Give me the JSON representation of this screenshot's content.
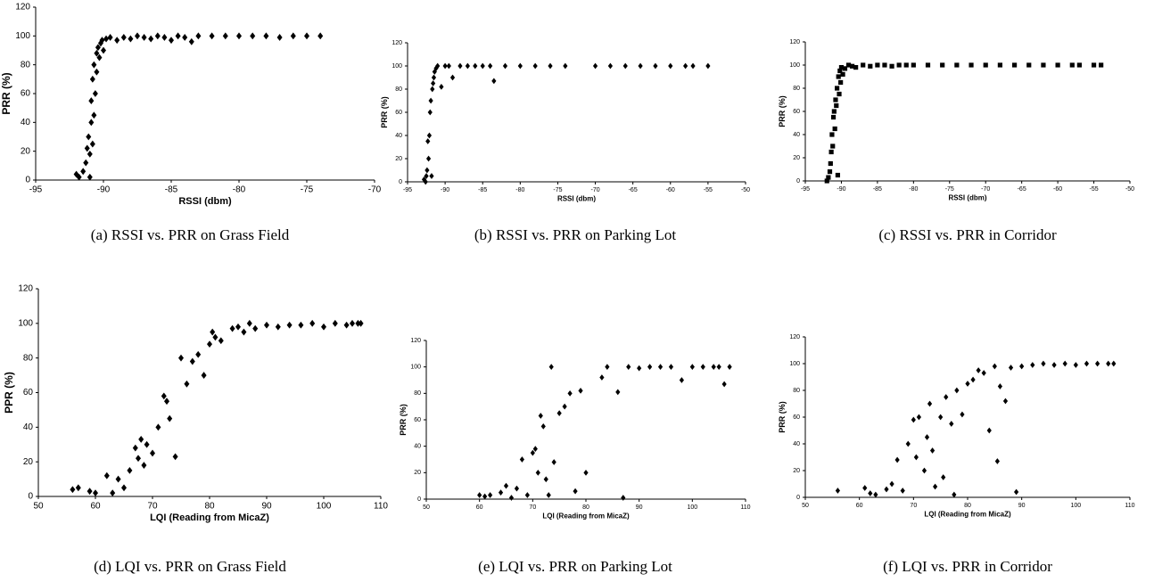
{
  "chart_data": [
    {
      "type": "scatter",
      "xlabel": "RSSI (dbm)",
      "ylabel": "PRR (%)",
      "caption": "(a) RSSI vs. PRR on Grass Field",
      "color": "#000000",
      "marker": "diamond",
      "xlim": [
        -95,
        -70
      ],
      "xticks": [
        -95,
        -90,
        -85,
        -80,
        -75,
        -70
      ],
      "ylim": [
        0,
        120
      ],
      "yticks": [
        0,
        20,
        40,
        60,
        80,
        100,
        120
      ],
      "x": [
        -92,
        -91.8,
        -91.5,
        -91.3,
        -91.2,
        -91.1,
        -91,
        -91,
        -90.9,
        -90.9,
        -90.8,
        -90.8,
        -90.7,
        -90.7,
        -90.6,
        -90.5,
        -90.5,
        -90.4,
        -90.3,
        -90.2,
        -90.1,
        -90,
        -89.8,
        -89.5,
        -89,
        -88.5,
        -88,
        -87.5,
        -87,
        -86.5,
        -86,
        -85.5,
        -85,
        -84.5,
        -84,
        -83.5,
        -83,
        -82,
        -81,
        -80,
        -79,
        -78,
        -77,
        -76,
        -75,
        -74
      ],
      "y": [
        4,
        2,
        6,
        12,
        22,
        30,
        2,
        18,
        40,
        55,
        25,
        70,
        45,
        80,
        60,
        75,
        88,
        92,
        85,
        95,
        97,
        90,
        98,
        99,
        97,
        99,
        98,
        100,
        99,
        98,
        100,
        99,
        97,
        100,
        99,
        96,
        100,
        100,
        100,
        100,
        100,
        100,
        99,
        100,
        100,
        100
      ]
    },
    {
      "type": "scatter",
      "xlabel": "RSSI (dbm)",
      "ylabel": "PRR (%)",
      "caption": "(b) RSSI vs. PRR on Parking Lot",
      "color": "#000000",
      "marker": "diamond",
      "xlim": [
        -95,
        -50
      ],
      "xticks": [
        -95,
        -90,
        -85,
        -80,
        -75,
        -70,
        -65,
        -60,
        -55,
        -50
      ],
      "ylim": [
        0,
        120
      ],
      "yticks": [
        0,
        20,
        40,
        60,
        80,
        100,
        120
      ],
      "x": [
        -92.8,
        -92.6,
        -92.5,
        -92.4,
        -92.3,
        -92.2,
        -92.1,
        -92,
        -91.9,
        -91.8,
        -91.7,
        -91.6,
        -91.5,
        -91.4,
        -91.2,
        -91,
        -90.5,
        -90,
        -89.5,
        -89,
        -88,
        -87,
        -86,
        -85,
        -84,
        -83.5,
        -82,
        -80,
        -78,
        -76,
        -74,
        -70,
        -68,
        -66,
        -64,
        -62,
        -60,
        -58,
        -57,
        -55
      ],
      "y": [
        2,
        0,
        5,
        10,
        35,
        20,
        40,
        60,
        70,
        5,
        80,
        85,
        90,
        95,
        98,
        100,
        82,
        100,
        100,
        90,
        100,
        100,
        100,
        100,
        100,
        87,
        100,
        100,
        100,
        100,
        100,
        100,
        100,
        100,
        100,
        100,
        100,
        100,
        100,
        100
      ]
    },
    {
      "type": "scatter",
      "xlabel": "RSSI (dbm)",
      "ylabel": "PRR (%)",
      "caption": "(c) RSSI vs. PRR in Corridor",
      "color": "#000000",
      "marker": "square",
      "xlim": [
        -95,
        -50
      ],
      "xticks": [
        -95,
        -90,
        -85,
        -80,
        -75,
        -70,
        -65,
        -60,
        -55,
        -50
      ],
      "ylim": [
        0,
        120
      ],
      "yticks": [
        0,
        20,
        40,
        60,
        80,
        100,
        120
      ],
      "x": [
        -92,
        -91.8,
        -91.6,
        -91.5,
        -91.4,
        -91.3,
        -91.2,
        -91.1,
        -91,
        -90.9,
        -90.8,
        -90.7,
        -90.6,
        -90.5,
        -90.4,
        -90.3,
        -90.2,
        -90.1,
        -90,
        -89.8,
        -89.5,
        -89,
        -88.5,
        -88,
        -87,
        -86,
        -85,
        -84,
        -83,
        -82,
        -81,
        -80,
        -78,
        -76,
        -74,
        -72,
        -70,
        -68,
        -66,
        -64,
        -62,
        -60,
        -58,
        -57,
        -55,
        -54
      ],
      "y": [
        0,
        3,
        8,
        15,
        25,
        40,
        30,
        55,
        60,
        45,
        70,
        65,
        80,
        5,
        90,
        75,
        95,
        85,
        98,
        92,
        97,
        100,
        99,
        98,
        100,
        99,
        100,
        100,
        99,
        100,
        100,
        100,
        100,
        100,
        100,
        100,
        100,
        100,
        100,
        100,
        100,
        100,
        100,
        100,
        100,
        100
      ]
    },
    {
      "type": "scatter",
      "xlabel": "LQI (Reading from MicaZ)",
      "ylabel": "PPR (%)",
      "caption": "(d) LQI vs. PRR on Grass Field",
      "color": "#000000",
      "marker": "diamond",
      "xlim": [
        50,
        110
      ],
      "xticks": [
        50,
        60,
        70,
        80,
        90,
        100,
        110
      ],
      "ylim": [
        0,
        120
      ],
      "yticks": [
        0,
        20,
        40,
        60,
        80,
        100,
        120
      ],
      "x": [
        56,
        57,
        59,
        60,
        62,
        63,
        64,
        65,
        66,
        67,
        67.5,
        68,
        68.5,
        69,
        70,
        71,
        72,
        72.5,
        73,
        74,
        75,
        76,
        77,
        78,
        79,
        80,
        80.5,
        81,
        82,
        84,
        85,
        86,
        87,
        88,
        90,
        92,
        94,
        96,
        98,
        100,
        102,
        104,
        105,
        106,
        106.5
      ],
      "y": [
        4,
        5,
        3,
        2,
        12,
        2,
        10,
        5,
        15,
        28,
        22,
        33,
        18,
        30,
        25,
        40,
        58,
        55,
        45,
        23,
        80,
        65,
        78,
        82,
        70,
        88,
        95,
        92,
        90,
        97,
        98,
        95,
        100,
        97,
        99,
        98,
        99,
        99,
        100,
        98,
        100,
        99,
        100,
        100,
        100
      ]
    },
    {
      "type": "scatter",
      "xlabel": "LQI (Reading from MicaZ)",
      "ylabel": "PRR (%)",
      "caption": "(e) LQI vs. PRR on Parking Lot",
      "color": "#000000",
      "marker": "diamond",
      "xlim": [
        50,
        110
      ],
      "xticks": [
        50,
        60,
        70,
        80,
        90,
        100,
        110
      ],
      "ylim": [
        0,
        120
      ],
      "yticks": [
        0,
        20,
        40,
        60,
        80,
        100,
        120
      ],
      "x": [
        60,
        61,
        62,
        64,
        65,
        66,
        67,
        68,
        69,
        70,
        70.5,
        71,
        71.5,
        72,
        72.5,
        73,
        73.5,
        74,
        75,
        76,
        77,
        78,
        79,
        80,
        83,
        84,
        86,
        87,
        88,
        90,
        92,
        94,
        96,
        98,
        100,
        102,
        104,
        105,
        106,
        107
      ],
      "y": [
        3,
        2,
        3,
        5,
        10,
        1,
        8,
        30,
        3,
        35,
        38,
        20,
        63,
        55,
        15,
        3,
        100,
        28,
        65,
        70,
        80,
        6,
        82,
        20,
        92,
        100,
        81,
        1,
        100,
        99,
        100,
        100,
        100,
        90,
        100,
        100,
        100,
        100,
        87,
        100
      ]
    },
    {
      "type": "scatter",
      "xlabel": "LQI (Reading from MicaZ)",
      "ylabel": "PRR (%)",
      "caption": "(f) LQI vs. PRR in Corridor",
      "color": "#000000",
      "marker": "diamond",
      "xlim": [
        50,
        110
      ],
      "xticks": [
        50,
        60,
        70,
        80,
        90,
        100,
        110
      ],
      "ylim": [
        0,
        120
      ],
      "yticks": [
        0,
        20,
        40,
        60,
        80,
        100,
        120
      ],
      "x": [
        56,
        61,
        62,
        63,
        65,
        66,
        67,
        68,
        69,
        70,
        70.5,
        71,
        72,
        72.5,
        73,
        73.5,
        74,
        75,
        75.5,
        76,
        77,
        77.5,
        78,
        79,
        80,
        81,
        82,
        83,
        84,
        85,
        85.5,
        86,
        87,
        88,
        89,
        90,
        92,
        94,
        96,
        98,
        100,
        102,
        104,
        106,
        107
      ],
      "y": [
        5,
        7,
        3,
        2,
        6,
        10,
        28,
        5,
        40,
        58,
        30,
        60,
        20,
        45,
        70,
        35,
        8,
        60,
        15,
        75,
        55,
        2,
        80,
        62,
        85,
        88,
        95,
        93,
        50,
        98,
        27,
        83,
        72,
        97,
        4,
        98,
        99,
        100,
        99,
        100,
        99,
        100,
        100,
        100,
        100
      ]
    }
  ]
}
